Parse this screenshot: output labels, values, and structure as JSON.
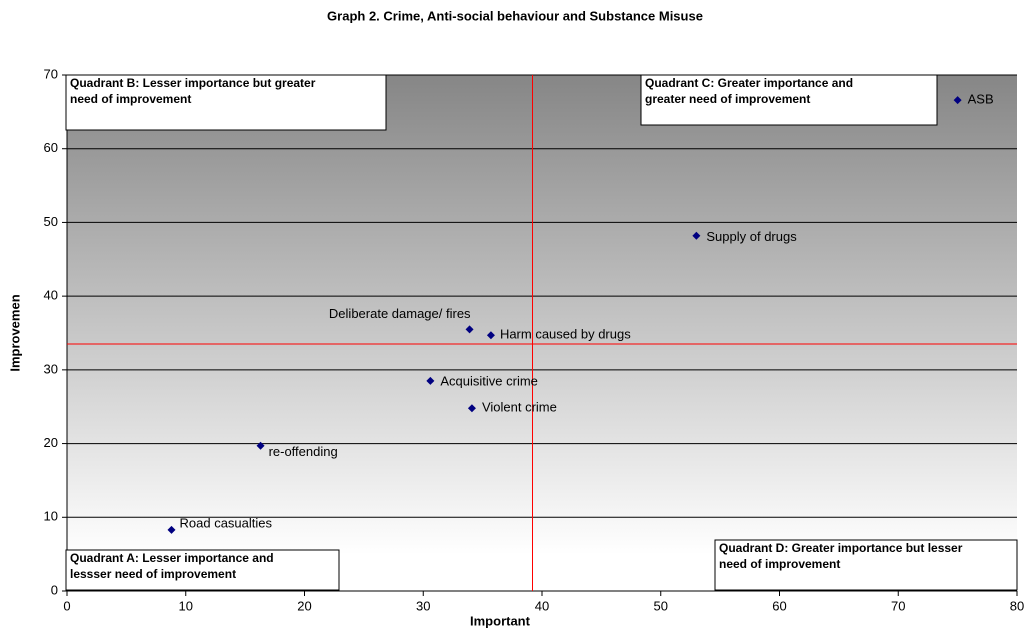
{
  "chart_data": {
    "type": "scatter",
    "title": "Graph 2. Crime, Anti-social behaviour and Substance Misuse",
    "xlabel": "Important",
    "ylabel": "Improvemen",
    "xlim": [
      0,
      80
    ],
    "ylim": [
      0,
      70
    ],
    "xticks": [
      0,
      10,
      20,
      30,
      40,
      50,
      60,
      70,
      80
    ],
    "yticks": [
      0,
      10,
      20,
      30,
      40,
      50,
      60,
      70
    ],
    "grid": true,
    "series": [
      {
        "color": "#000080",
        "labels": [
          "ASB",
          "Supply of drugs",
          "Deliberate damage/ fires",
          "Harm caused by drugs",
          "Acquisitive crime",
          "Violent crime",
          "re-offending",
          "Road casualties"
        ],
        "x": [
          75.0,
          53.0,
          33.9,
          35.7,
          30.6,
          34.1,
          16.3,
          8.8
        ],
        "values": [
          66.6,
          48.2,
          35.5,
          34.7,
          28.5,
          24.8,
          19.7,
          8.3
        ]
      }
    ],
    "reference_lines": {
      "x": 39.2,
      "y": 33.5,
      "color": "#ff0000"
    },
    "quadrants": [
      {
        "lines": [
          "Quadrant B: Lesser importance but greater",
          "need of improvement"
        ]
      },
      {
        "lines": [
          "Quadrant C: Greater importance and",
          "greater need of improvement"
        ]
      },
      {
        "lines": [
          "Quadrant A: Lesser importance and",
          "lessser need of improvement"
        ]
      },
      {
        "lines": [
          "Quadrant D: Greater importance but lesser",
          "need of improvement"
        ]
      }
    ]
  }
}
